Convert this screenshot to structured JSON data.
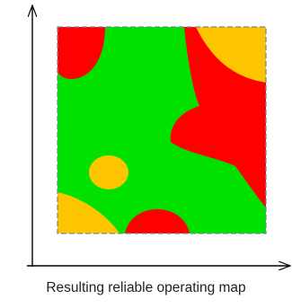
{
  "caption": "Resulting reliable operating map",
  "colors": {
    "safe": "#00e100",
    "warning": "#ffc400",
    "danger": "#ff0000",
    "border": "#6a8aa6",
    "axis": "#000000"
  },
  "regions": {
    "background": "safe",
    "blobs": [
      {
        "name": "danger-region-top-left",
        "level": "danger"
      },
      {
        "name": "danger-region-right",
        "level": "danger"
      },
      {
        "name": "warning-region-top-right",
        "level": "warning"
      },
      {
        "name": "warning-region-circle",
        "level": "warning"
      },
      {
        "name": "warning-region-bottom-left",
        "level": "warning"
      },
      {
        "name": "danger-region-bottom-center",
        "level": "danger"
      }
    ]
  }
}
